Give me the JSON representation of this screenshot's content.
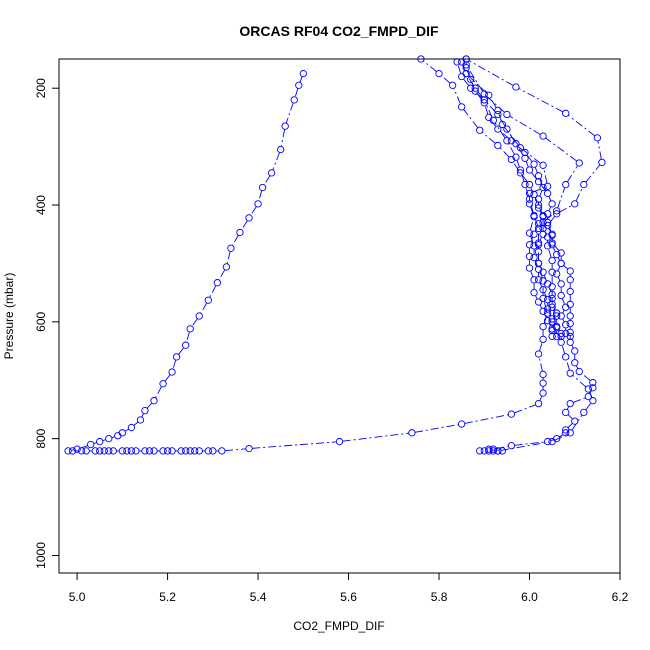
{
  "chart_data": {
    "type": "scatter",
    "title": "ORCAS RF04 CO2_FMPD_DIF",
    "xlabel": "CO2_FMPD_DIF",
    "ylabel": "Pressure (mbar)",
    "xlim": [
      4.96,
      6.2
    ],
    "ylim": [
      1030,
      150
    ],
    "y_reversed": true,
    "x_ticks": [
      5.0,
      5.2,
      5.4,
      5.6,
      5.8,
      6.0,
      6.2
    ],
    "x_tick_labels": [
      "5.0",
      "5.2",
      "5.4",
      "5.6",
      "5.8",
      "6.0",
      "6.2"
    ],
    "y_ticks": [
      200,
      400,
      600,
      800,
      1000
    ],
    "y_tick_labels": [
      "200",
      "400",
      "600",
      "800",
      "1000"
    ],
    "marker": "open-circle",
    "line_style": "dash-dot",
    "color": "#0000ff",
    "series": [
      {
        "points": [
          [
            5.5,
            175
          ],
          [
            5.49,
            195
          ],
          [
            5.48,
            220
          ],
          [
            5.46,
            265
          ],
          [
            5.45,
            305
          ],
          [
            5.43,
            345
          ],
          [
            5.41,
            370
          ],
          [
            5.4,
            398
          ],
          [
            5.38,
            422
          ],
          [
            5.36,
            447
          ],
          [
            5.34,
            474
          ],
          [
            5.33,
            506
          ],
          [
            5.31,
            533
          ],
          [
            5.29,
            563
          ],
          [
            5.27,
            590
          ],
          [
            5.25,
            612
          ],
          [
            5.24,
            640
          ],
          [
            5.22,
            660
          ],
          [
            5.21,
            686
          ],
          [
            5.19,
            706
          ],
          [
            5.17,
            735
          ],
          [
            5.15,
            752
          ],
          [
            5.14,
            768
          ],
          [
            5.12,
            781
          ],
          [
            5.1,
            790
          ],
          [
            5.09,
            795
          ],
          [
            5.07,
            800
          ],
          [
            5.05,
            805
          ],
          [
            5.03,
            810
          ],
          [
            5.0,
            818
          ],
          [
            4.98,
            821
          ]
        ]
      },
      {
        "points": [
          [
            4.99,
            821
          ],
          [
            5.01,
            821
          ],
          [
            5.02,
            821
          ],
          [
            5.04,
            821
          ],
          [
            5.05,
            821
          ],
          [
            5.06,
            821
          ],
          [
            5.07,
            821
          ],
          [
            5.08,
            821
          ],
          [
            5.1,
            821
          ],
          [
            5.11,
            821
          ],
          [
            5.12,
            821
          ],
          [
            5.13,
            821
          ],
          [
            5.15,
            821
          ],
          [
            5.16,
            821
          ],
          [
            5.17,
            821
          ],
          [
            5.19,
            821
          ],
          [
            5.2,
            821
          ],
          [
            5.21,
            821
          ],
          [
            5.23,
            821
          ],
          [
            5.24,
            821
          ],
          [
            5.25,
            821
          ],
          [
            5.26,
            821
          ],
          [
            5.27,
            821
          ],
          [
            5.29,
            821
          ],
          [
            5.3,
            821
          ],
          [
            5.32,
            821
          ],
          [
            5.38,
            817
          ],
          [
            5.58,
            805
          ],
          [
            5.74,
            790
          ],
          [
            5.85,
            775
          ],
          [
            5.96,
            758
          ],
          [
            6.02,
            740
          ],
          [
            6.03,
            722
          ],
          [
            6.03,
            705
          ],
          [
            6.03,
            690
          ],
          [
            6.02,
            655
          ],
          [
            6.03,
            630
          ],
          [
            6.03,
            608
          ],
          [
            6.04,
            585
          ],
          [
            6.03,
            560
          ],
          [
            6.03,
            530
          ],
          [
            6.02,
            500
          ],
          [
            6.02,
            468
          ],
          [
            6.02,
            440
          ],
          [
            6.01,
            418
          ],
          [
            6.0,
            390
          ],
          [
            5.99,
            365
          ],
          [
            5.98,
            340
          ],
          [
            5.97,
            318
          ],
          [
            5.95,
            290
          ],
          [
            5.92,
            255
          ],
          [
            5.9,
            220
          ],
          [
            5.88,
            200
          ],
          [
            5.86,
            175
          ],
          [
            5.85,
            155
          ]
        ]
      },
      {
        "points": [
          [
            5.89,
            821
          ],
          [
            5.9,
            821
          ],
          [
            5.91,
            821
          ],
          [
            5.92,
            821
          ],
          [
            5.93,
            821
          ],
          [
            5.94,
            821
          ],
          [
            5.92,
            818
          ],
          [
            5.96,
            812
          ],
          [
            6.04,
            805
          ],
          [
            6.06,
            800
          ],
          [
            6.08,
            790
          ],
          [
            6.08,
            785
          ],
          [
            6.1,
            770
          ],
          [
            6.08,
            755
          ],
          [
            6.09,
            740
          ],
          [
            6.13,
            728
          ],
          [
            6.14,
            713
          ],
          [
            6.14,
            704
          ],
          [
            6.11,
            685
          ],
          [
            6.1,
            670
          ],
          [
            6.1,
            650
          ],
          [
            6.09,
            635
          ],
          [
            6.09,
            618
          ],
          [
            6.09,
            603
          ],
          [
            6.09,
            590
          ],
          [
            6.09,
            570
          ],
          [
            6.09,
            548
          ],
          [
            6.09,
            528
          ],
          [
            6.09,
            513
          ],
          [
            6.07,
            500
          ],
          [
            6.07,
            482
          ],
          [
            6.05,
            465
          ],
          [
            6.05,
            450
          ],
          [
            6.04,
            430
          ],
          [
            6.04,
            415
          ],
          [
            6.05,
            398
          ],
          [
            6.04,
            380
          ],
          [
            6.02,
            360
          ],
          [
            6.0,
            340
          ],
          [
            5.99,
            320
          ],
          [
            5.97,
            295
          ],
          [
            5.95,
            270
          ],
          [
            5.93,
            245
          ],
          [
            5.9,
            220
          ],
          [
            5.87,
            200
          ],
          [
            5.85,
            180
          ],
          [
            5.84,
            155
          ]
        ]
      },
      {
        "points": [
          [
            5.91,
            818
          ],
          [
            5.93,
            821
          ],
          [
            6.05,
            805
          ],
          [
            6.09,
            790
          ],
          [
            6.12,
            755
          ],
          [
            6.14,
            735
          ],
          [
            6.13,
            715
          ],
          [
            6.09,
            688
          ],
          [
            6.08,
            660
          ],
          [
            6.07,
            635
          ],
          [
            6.07,
            620
          ],
          [
            6.06,
            608
          ],
          [
            6.06,
            590
          ],
          [
            6.05,
            575
          ],
          [
            6.05,
            560
          ],
          [
            6.05,
            540
          ],
          [
            6.05,
            515
          ],
          [
            6.05,
            495
          ],
          [
            6.04,
            470
          ],
          [
            6.04,
            455
          ],
          [
            6.03,
            440
          ],
          [
            6.03,
            420
          ],
          [
            6.02,
            405
          ],
          [
            6.02,
            390
          ],
          [
            6.03,
            370
          ],
          [
            6.02,
            350
          ],
          [
            6.01,
            330
          ],
          [
            5.99,
            310
          ],
          [
            5.96,
            290
          ],
          [
            5.93,
            270
          ],
          [
            5.91,
            250
          ],
          [
            5.9,
            225
          ],
          [
            5.88,
            205
          ],
          [
            5.87,
            185
          ],
          [
            5.86,
            165
          ],
          [
            5.86,
            150
          ]
        ]
      },
      {
        "points": [
          [
            6.09,
            625
          ],
          [
            6.08,
            620
          ],
          [
            6.08,
            605
          ],
          [
            6.07,
            590
          ],
          [
            6.08,
            575
          ],
          [
            6.07,
            555
          ],
          [
            6.07,
            535
          ],
          [
            6.06,
            518
          ],
          [
            6.07,
            500
          ],
          [
            6.06,
            485
          ],
          [
            6.05,
            468
          ],
          [
            6.05,
            452
          ],
          [
            6.04,
            435
          ],
          [
            6.06,
            415
          ],
          [
            6.1,
            398
          ],
          [
            6.12,
            365
          ],
          [
            6.16,
            327
          ],
          [
            6.15,
            285
          ],
          [
            6.08,
            243
          ],
          [
            5.97,
            198
          ],
          [
            5.86,
            150
          ]
        ]
      },
      {
        "points": [
          [
            6.07,
            625
          ],
          [
            6.05,
            615
          ],
          [
            6.05,
            600
          ],
          [
            6.06,
            585
          ],
          [
            6.05,
            570
          ],
          [
            6.05,
            553
          ],
          [
            6.04,
            535
          ],
          [
            6.03,
            515
          ],
          [
            6.02,
            500
          ],
          [
            6.02,
            480
          ],
          [
            6.02,
            465
          ],
          [
            6.03,
            450
          ],
          [
            6.03,
            430
          ],
          [
            6.06,
            410
          ],
          [
            6.08,
            365
          ],
          [
            6.11,
            328
          ],
          [
            6.03,
            282
          ],
          [
            5.95,
            245
          ],
          [
            5.9,
            210
          ],
          [
            5.86,
            160
          ]
        ]
      },
      {
        "points": [
          [
            6.06,
            625
          ],
          [
            6.06,
            610
          ],
          [
            6.05,
            595
          ],
          [
            6.04,
            578
          ],
          [
            6.04,
            562
          ],
          [
            6.03,
            545
          ],
          [
            6.02,
            528
          ],
          [
            6.02,
            510
          ],
          [
            6.01,
            490
          ],
          [
            6.01,
            470
          ],
          [
            6.0,
            448
          ],
          [
            6.01,
            420
          ],
          [
            6.0,
            398
          ],
          [
            6.0,
            380
          ],
          [
            6.04,
            368
          ],
          [
            6.03,
            332
          ],
          [
            5.98,
            302
          ],
          [
            5.94,
            262
          ],
          [
            5.93,
            238
          ],
          [
            5.91,
            212
          ],
          [
            5.86,
            175
          ]
        ]
      },
      {
        "points": [
          [
            6.05,
            625
          ],
          [
            6.05,
            612
          ],
          [
            6.04,
            598
          ],
          [
            6.03,
            582
          ],
          [
            6.02,
            566
          ],
          [
            6.01,
            550
          ],
          [
            6.01,
            528
          ],
          [
            6.0,
            508
          ],
          [
            6.0,
            488
          ],
          [
            6.0,
            468
          ],
          [
            6.01,
            450
          ],
          [
            6.02,
            432
          ],
          [
            6.03,
            418
          ],
          [
            6.02,
            400
          ],
          [
            6.01,
            382
          ],
          [
            6.0,
            365
          ],
          [
            5.98,
            345
          ],
          [
            5.96,
            322
          ],
          [
            5.93,
            298
          ],
          [
            5.89,
            272
          ],
          [
            5.85,
            232
          ],
          [
            5.83,
            195
          ],
          [
            5.8,
            175
          ],
          [
            5.76,
            150
          ]
        ]
      }
    ]
  }
}
